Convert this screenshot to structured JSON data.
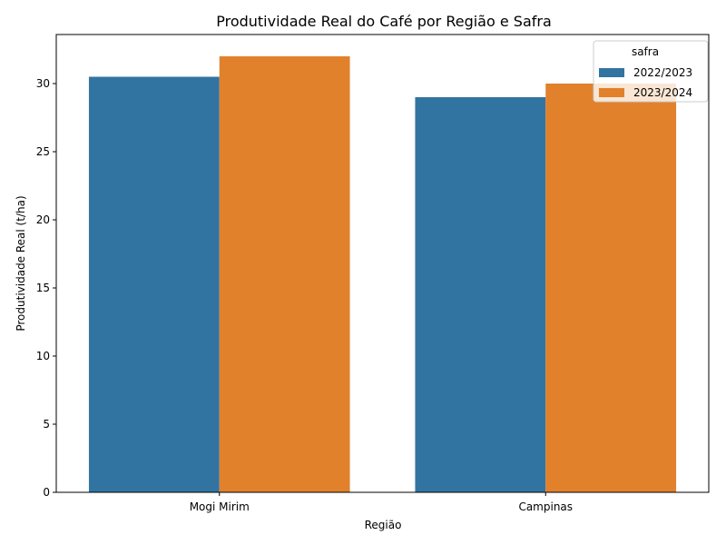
{
  "chart_data": {
    "type": "bar",
    "title": "Produtividade Real do Café por Região e Safra",
    "xlabel": "Região",
    "ylabel": "Produtividade Real (t/ha)",
    "categories": [
      "Mogi Mirim",
      "Campinas"
    ],
    "series": [
      {
        "name": "2022/2023",
        "color": "#3274a1",
        "values": [
          30.5,
          29.0
        ]
      },
      {
        "name": "2023/2024",
        "color": "#e1812c",
        "values": [
          32.0,
          30.0
        ]
      }
    ],
    "ylim": [
      0,
      33.6
    ],
    "yticks": [
      0,
      5,
      10,
      15,
      20,
      25,
      30
    ],
    "legend": {
      "title": "safra",
      "position": "top-right"
    },
    "grid": false
  }
}
